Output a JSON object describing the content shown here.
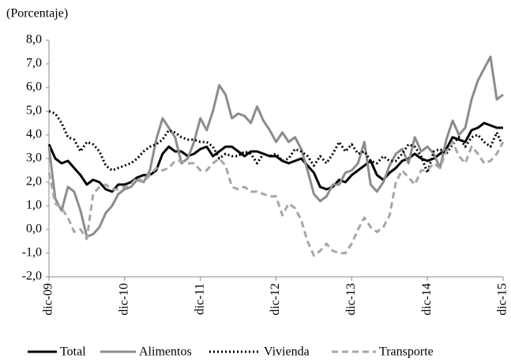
{
  "chart_data": {
    "type": "line",
    "y_label": "(Porcentaje)",
    "categories": [
      "dic-09",
      null,
      null,
      null,
      null,
      null,
      null,
      null,
      null,
      null,
      null,
      null,
      "dic-10",
      null,
      null,
      null,
      null,
      null,
      null,
      null,
      null,
      null,
      null,
      null,
      "dic-11",
      null,
      null,
      null,
      null,
      null,
      null,
      null,
      null,
      null,
      null,
      null,
      "dic-12",
      null,
      null,
      null,
      null,
      null,
      null,
      null,
      null,
      null,
      null,
      null,
      "dic-13",
      null,
      null,
      null,
      null,
      null,
      null,
      null,
      null,
      null,
      null,
      null,
      "dic-14",
      null,
      null,
      null,
      null,
      null,
      null,
      null,
      null,
      null,
      null,
      null,
      "dic-15"
    ],
    "ylim": [
      -2,
      8
    ],
    "yticks": [
      {
        "value": -2,
        "label": "-2,0"
      },
      {
        "value": -1,
        "label": "-1,0"
      },
      {
        "value": 0,
        "label": "0,0"
      },
      {
        "value": 1,
        "label": "1,0"
      },
      {
        "value": 2,
        "label": "2,0"
      },
      {
        "value": 3,
        "label": "3,0"
      },
      {
        "value": 4,
        "label": "4,0"
      },
      {
        "value": 5,
        "label": "5,0"
      },
      {
        "value": 6,
        "label": "6,0"
      },
      {
        "value": 7,
        "label": "7,0"
      },
      {
        "value": 8,
        "label": "8,0"
      }
    ],
    "grid": false,
    "legend": "bottom",
    "series": [
      {
        "name": "Total",
        "color": "#000000",
        "dash": "solid",
        "values": [
          3.6,
          3.0,
          2.8,
          2.9,
          2.6,
          2.3,
          1.9,
          2.1,
          2.0,
          1.7,
          1.6,
          1.9,
          1.9,
          2.0,
          2.2,
          2.3,
          2.3,
          2.5,
          3.2,
          3.5,
          3.3,
          3.3,
          3.1,
          3.2,
          3.4,
          3.5,
          3.1,
          3.3,
          3.5,
          3.5,
          3.3,
          3.1,
          3.3,
          3.3,
          3.2,
          3.1,
          3.1,
          2.9,
          2.8,
          2.9,
          3.0,
          2.7,
          2.4,
          1.8,
          1.7,
          1.8,
          2.1,
          2.0,
          2.3,
          2.5,
          2.7,
          2.9,
          2.3,
          2.1,
          2.4,
          2.6,
          2.9,
          3.0,
          3.2,
          3.0,
          2.9,
          3.0,
          3.2,
          3.4,
          3.9,
          3.8,
          3.7,
          4.2,
          4.3,
          4.5,
          4.4,
          4.3,
          4.3
        ]
      },
      {
        "name": "Alimentos",
        "color": "#8c8c8c",
        "dash": "solid",
        "values": [
          3.5,
          1.3,
          0.8,
          1.8,
          1.6,
          0.8,
          -0.3,
          -0.2,
          0.1,
          0.7,
          1.0,
          1.5,
          1.7,
          1.8,
          2.1,
          2.0,
          2.5,
          3.8,
          4.7,
          4.3,
          3.9,
          2.8,
          3.0,
          3.7,
          4.7,
          4.2,
          5.0,
          6.1,
          5.7,
          4.7,
          4.9,
          4.8,
          4.5,
          5.2,
          4.6,
          4.2,
          3.7,
          4.1,
          3.7,
          3.9,
          3.4,
          2.5,
          1.5,
          1.2,
          1.4,
          1.9,
          1.9,
          2.4,
          2.5,
          2.8,
          3.7,
          1.9,
          1.6,
          2.0,
          2.7,
          3.2,
          3.4,
          2.8,
          3.9,
          3.3,
          3.5,
          3.2,
          2.6,
          3.8,
          4.6,
          4.0,
          4.3,
          5.5,
          6.3,
          6.8,
          7.3,
          5.5,
          5.7
        ]
      },
      {
        "name": "Vivienda",
        "color": "#000000",
        "dash": "dotted",
        "values": [
          5.0,
          4.9,
          4.5,
          3.9,
          3.8,
          3.3,
          3.7,
          3.6,
          3.3,
          2.7,
          2.5,
          2.6,
          2.7,
          2.8,
          3.0,
          3.3,
          3.5,
          3.6,
          3.8,
          4.2,
          4.1,
          3.9,
          3.8,
          3.8,
          3.7,
          3.7,
          3.5,
          3.0,
          3.2,
          3.1,
          3.1,
          3.3,
          3.2,
          2.8,
          3.2,
          3.1,
          3.2,
          2.9,
          3.0,
          3.4,
          3.3,
          3.1,
          2.7,
          3.1,
          2.8,
          3.2,
          3.7,
          3.3,
          3.6,
          3.2,
          3.3,
          2.9,
          2.8,
          3.1,
          2.9,
          2.9,
          3.2,
          3.6,
          3.5,
          3.1,
          2.4,
          3.3,
          3.4,
          3.2,
          3.6,
          3.9,
          3.5,
          3.9,
          4.0,
          3.7,
          3.5,
          4.1,
          3.5
        ]
      },
      {
        "name": "Transporte",
        "color": "#a6a6a6",
        "dash": "dashed",
        "values": [
          2.4,
          1.1,
          0.9,
          0.5,
          -0.1,
          0.0,
          -0.4,
          1.5,
          1.8,
          1.9,
          1.7,
          1.7,
          1.8,
          1.9,
          2.2,
          2.0,
          2.3,
          2.6,
          2.5,
          2.6,
          2.9,
          2.9,
          2.8,
          2.8,
          2.5,
          2.5,
          2.8,
          3.0,
          2.7,
          1.8,
          1.7,
          1.8,
          1.6,
          1.6,
          1.5,
          1.4,
          1.4,
          0.6,
          1.1,
          0.9,
          0.4,
          -0.5,
          -1.1,
          -0.9,
          -0.6,
          -0.9,
          -1.0,
          -1.0,
          -0.6,
          0.0,
          0.5,
          0.1,
          -0.1,
          0.1,
          0.6,
          2.0,
          2.5,
          2.2,
          1.9,
          2.5,
          2.5,
          2.8,
          2.6,
          3.3,
          3.7,
          3.1,
          2.8,
          3.5,
          3.2,
          2.8,
          2.9,
          3.2,
          3.7
        ]
      }
    ]
  }
}
